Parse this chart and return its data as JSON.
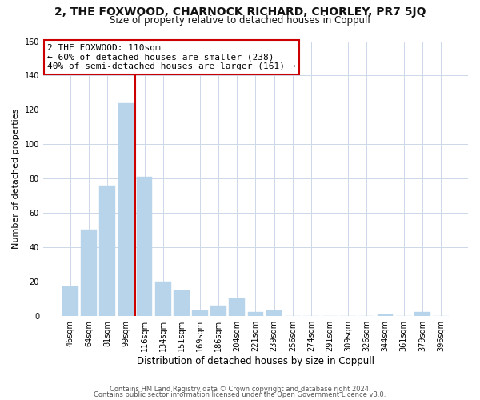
{
  "title": "2, THE FOXWOOD, CHARNOCK RICHARD, CHORLEY, PR7 5JQ",
  "subtitle": "Size of property relative to detached houses in Coppull",
  "xlabel": "Distribution of detached houses by size in Coppull",
  "ylabel": "Number of detached properties",
  "bar_labels": [
    "46sqm",
    "64sqm",
    "81sqm",
    "99sqm",
    "116sqm",
    "134sqm",
    "151sqm",
    "169sqm",
    "186sqm",
    "204sqm",
    "221sqm",
    "239sqm",
    "256sqm",
    "274sqm",
    "291sqm",
    "309sqm",
    "326sqm",
    "344sqm",
    "361sqm",
    "379sqm",
    "396sqm"
  ],
  "bar_values": [
    17,
    50,
    76,
    124,
    81,
    20,
    15,
    3,
    6,
    10,
    2,
    3,
    0,
    0,
    0,
    0,
    0,
    1,
    0,
    2,
    0
  ],
  "bar_color": "#b8d4ea",
  "vline_color": "#cc0000",
  "vline_x": 3.5,
  "annotation_line1": "2 THE FOXWOOD: 110sqm",
  "annotation_line2": "← 60% of detached houses are smaller (238)",
  "annotation_line3": "40% of semi-detached houses are larger (161) →",
  "annotation_box_color": "#ffffff",
  "annotation_box_edgecolor": "#cc0000",
  "ylim": [
    0,
    160
  ],
  "yticks": [
    0,
    20,
    40,
    60,
    80,
    100,
    120,
    140,
    160
  ],
  "footer_line1": "Contains HM Land Registry data © Crown copyright and database right 2024.",
  "footer_line2": "Contains public sector information licensed under the Open Government Licence v3.0.",
  "bg_color": "#ffffff",
  "grid_color": "#ccd8e8"
}
